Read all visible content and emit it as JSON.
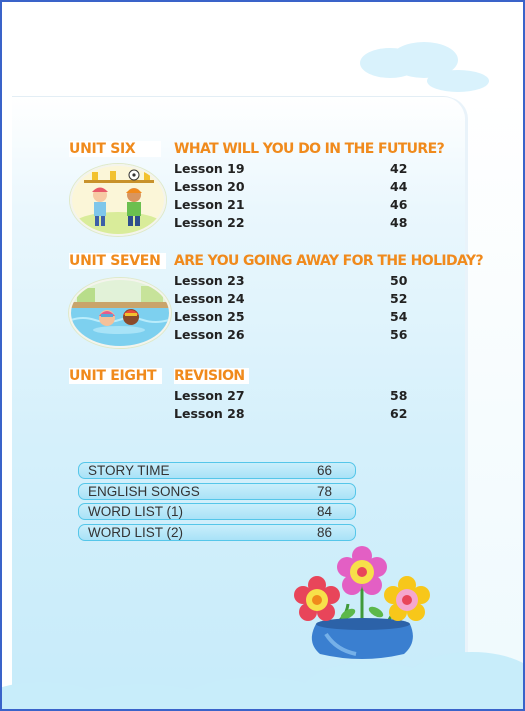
{
  "units": [
    {
      "name": "UNIT SIX",
      "title": "WHAT WILL YOU DO IN THE FUTURE?",
      "lessons": [
        {
          "label": "Lesson 19",
          "page": "42"
        },
        {
          "label": "Lesson 20",
          "page": "44"
        },
        {
          "label": "Lesson 21",
          "page": "46"
        },
        {
          "label": "Lesson 22",
          "page": "48"
        }
      ]
    },
    {
      "name": "UNIT SEVEN",
      "title": "ARE YOU GOING AWAY FOR THE HOLIDAY?",
      "lessons": [
        {
          "label": "Lesson 23",
          "page": "50"
        },
        {
          "label": "Lesson 24",
          "page": "52"
        },
        {
          "label": "Lesson 25",
          "page": "54"
        },
        {
          "label": "Lesson 26",
          "page": "56"
        }
      ]
    },
    {
      "name": "UNIT EIGHT",
      "title": "REVISION",
      "lessons": [
        {
          "label": "Lesson 27",
          "page": "58"
        },
        {
          "label": "Lesson 28",
          "page": "62"
        }
      ]
    }
  ],
  "extras": [
    {
      "label": "STORY TIME",
      "page": "66"
    },
    {
      "label": "ENGLISH SONGS",
      "page": "78"
    },
    {
      "label": "WORD LIST (1)",
      "page": "84"
    },
    {
      "label": "WORD LIST (2)",
      "page": "86"
    }
  ],
  "colors": {
    "heading": "#f08a1c",
    "frame": "#3a63c9",
    "pill_border": "#55c6e9",
    "panel": "#d5f0fb"
  },
  "icons": [
    "children-trophy-illustration",
    "children-swimming-illustration",
    "flower-vase-illustration"
  ]
}
